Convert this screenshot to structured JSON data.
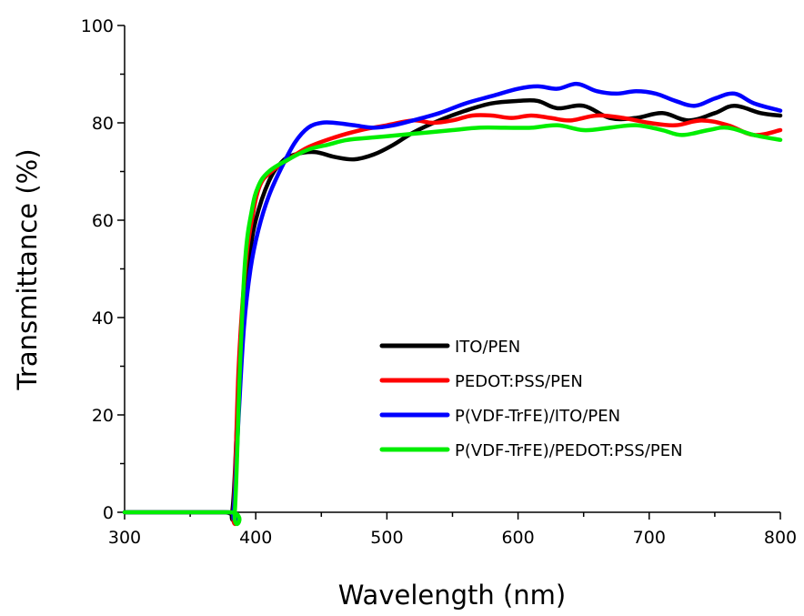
{
  "chart_data": {
    "type": "line",
    "title": "",
    "xlabel": "Wavelength (nm)",
    "ylabel": "Transmittance (%)",
    "xlim": [
      300,
      800
    ],
    "ylim": [
      0,
      100
    ],
    "xticks": [
      "300",
      "400",
      "500",
      "600",
      "700",
      "800"
    ],
    "yticks": [
      "0",
      "20",
      "40",
      "60",
      "80",
      "100"
    ],
    "grid": false,
    "legend_position": "bottom-right",
    "series": [
      {
        "name": "ITO/PEN",
        "color": "#000000",
        "points": [
          [
            300,
            0
          ],
          [
            375,
            0
          ],
          [
            382,
            0
          ],
          [
            386,
            20
          ],
          [
            390,
            40
          ],
          [
            395,
            52
          ],
          [
            400,
            60
          ],
          [
            410,
            68
          ],
          [
            420,
            72
          ],
          [
            430,
            73.5
          ],
          [
            445,
            74
          ],
          [
            460,
            73
          ],
          [
            475,
            72.5
          ],
          [
            490,
            73.5
          ],
          [
            505,
            75.5
          ],
          [
            520,
            78
          ],
          [
            540,
            80.5
          ],
          [
            560,
            82.5
          ],
          [
            580,
            84
          ],
          [
            600,
            84.5
          ],
          [
            615,
            84.5
          ],
          [
            630,
            83
          ],
          [
            650,
            83.5
          ],
          [
            670,
            81
          ],
          [
            690,
            81
          ],
          [
            710,
            82
          ],
          [
            730,
            80.5
          ],
          [
            750,
            82
          ],
          [
            765,
            83.5
          ],
          [
            785,
            82
          ],
          [
            800,
            81.5
          ]
        ]
      },
      {
        "name": "PEDOT:PSS/PEN",
        "color": "#ff0000",
        "points": [
          [
            300,
            0
          ],
          [
            378,
            0
          ],
          [
            383,
            0
          ],
          [
            387,
            30
          ],
          [
            392,
            50
          ],
          [
            397,
            60
          ],
          [
            403,
            67
          ],
          [
            412,
            70
          ],
          [
            425,
            72.5
          ],
          [
            440,
            75
          ],
          [
            460,
            77
          ],
          [
            480,
            78.5
          ],
          [
            500,
            79.5
          ],
          [
            520,
            80.5
          ],
          [
            535,
            80
          ],
          [
            550,
            80.5
          ],
          [
            565,
            81.5
          ],
          [
            580,
            81.5
          ],
          [
            595,
            81
          ],
          [
            610,
            81.5
          ],
          [
            625,
            81
          ],
          [
            640,
            80.5
          ],
          [
            660,
            81.5
          ],
          [
            680,
            81
          ],
          [
            700,
            80
          ],
          [
            720,
            79.5
          ],
          [
            740,
            80.5
          ],
          [
            760,
            79.5
          ],
          [
            780,
            77.5
          ],
          [
            800,
            78.5
          ]
        ]
      },
      {
        "name": "P(VDF-TrFE)/ITO/PEN",
        "color": "#0000ff",
        "points": [
          [
            300,
            0
          ],
          [
            378,
            0
          ],
          [
            383,
            0
          ],
          [
            387,
            20
          ],
          [
            391,
            38
          ],
          [
            396,
            50
          ],
          [
            402,
            58
          ],
          [
            410,
            65
          ],
          [
            420,
            71
          ],
          [
            430,
            76
          ],
          [
            440,
            79
          ],
          [
            450,
            80
          ],
          [
            460,
            80
          ],
          [
            475,
            79.5
          ],
          [
            490,
            79
          ],
          [
            505,
            79.5
          ],
          [
            520,
            80.5
          ],
          [
            540,
            82
          ],
          [
            560,
            84
          ],
          [
            580,
            85.5
          ],
          [
            600,
            87
          ],
          [
            615,
            87.5
          ],
          [
            630,
            87
          ],
          [
            645,
            88
          ],
          [
            660,
            86.5
          ],
          [
            675,
            86
          ],
          [
            690,
            86.5
          ],
          [
            705,
            86
          ],
          [
            720,
            84.5
          ],
          [
            735,
            83.5
          ],
          [
            750,
            85
          ],
          [
            765,
            86
          ],
          [
            780,
            84
          ],
          [
            800,
            82.5
          ]
        ]
      },
      {
        "name": "P(VDF-TrFE)/PEDOT:PSS/PEN",
        "color": "#00ee00",
        "points": [
          [
            300,
            0
          ],
          [
            380,
            0
          ],
          [
            384,
            0
          ],
          [
            388,
            30
          ],
          [
            392,
            52
          ],
          [
            397,
            62
          ],
          [
            402,
            67
          ],
          [
            410,
            70
          ],
          [
            425,
            72.5
          ],
          [
            440,
            74.5
          ],
          [
            455,
            75.5
          ],
          [
            470,
            76.5
          ],
          [
            490,
            77
          ],
          [
            510,
            77.5
          ],
          [
            530,
            78
          ],
          [
            550,
            78.5
          ],
          [
            570,
            79
          ],
          [
            590,
            79
          ],
          [
            610,
            79
          ],
          [
            630,
            79.5
          ],
          [
            650,
            78.5
          ],
          [
            670,
            79
          ],
          [
            690,
            79.5
          ],
          [
            710,
            78.5
          ],
          [
            725,
            77.5
          ],
          [
            745,
            78.5
          ],
          [
            760,
            79
          ],
          [
            780,
            77.5
          ],
          [
            800,
            76.5
          ]
        ]
      }
    ]
  }
}
